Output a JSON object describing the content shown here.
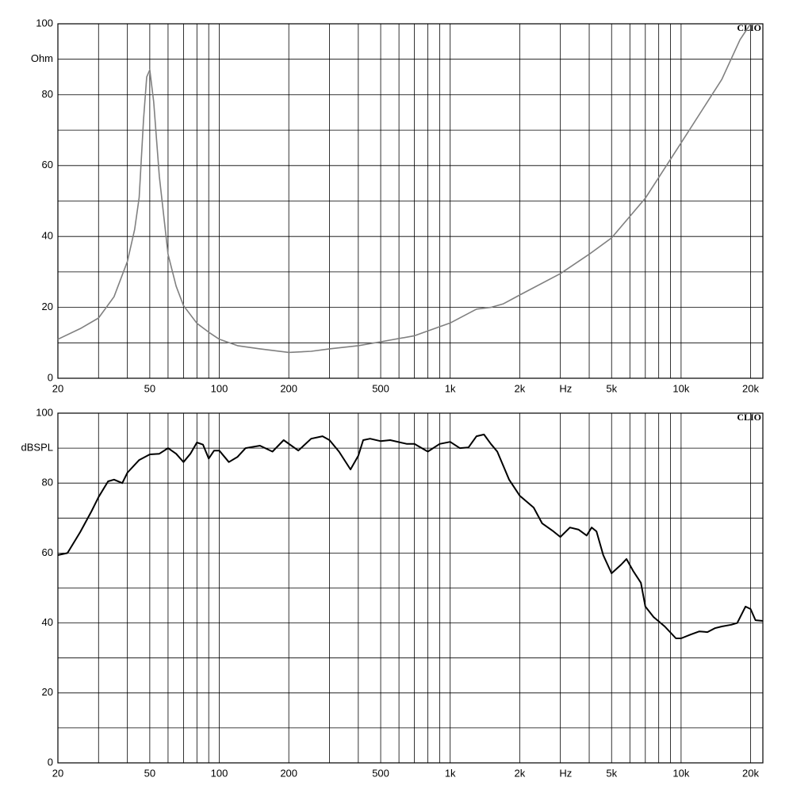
{
  "chart_data": [
    {
      "type": "line",
      "y_label": "Ohm",
      "x_label": "Hz",
      "corner_label": "CLIO",
      "color": "#808080",
      "log_x": true,
      "grid": true,
      "xlim": [
        20,
        22600
      ],
      "ylim": [
        0,
        100
      ],
      "xticks": [
        20,
        50,
        100,
        200,
        500,
        {
          "value": 1000,
          "label": "1k"
        },
        {
          "value": 2000,
          "label": "2k"
        },
        {
          "value": 5000,
          "label": "5k"
        },
        {
          "value": 10000,
          "label": "10k"
        },
        {
          "value": 20000,
          "label": "20k"
        }
      ],
      "xminor": [
        30,
        40,
        60,
        70,
        80,
        90,
        300,
        400,
        600,
        700,
        800,
        900,
        3000,
        4000,
        6000,
        7000,
        8000,
        9000
      ],
      "yticks": [
        0,
        20,
        40,
        60,
        80,
        100
      ],
      "yminor": [
        10,
        30,
        50,
        70,
        90
      ],
      "x": [
        20,
        25,
        30,
        35,
        40,
        43,
        45,
        47,
        48.5,
        50,
        52,
        55,
        60,
        65,
        70,
        80,
        90,
        100,
        120,
        150,
        200,
        250,
        300,
        400,
        500,
        700,
        1000,
        1300,
        1500,
        1700,
        2000,
        3000,
        4000,
        5000,
        7000,
        10000,
        15000,
        18000,
        20000
      ],
      "values": [
        11,
        14,
        17,
        23,
        33,
        42,
        51,
        73,
        85,
        87,
        78,
        57,
        35,
        26,
        20.5,
        15.5,
        13,
        11,
        9.2,
        8.3,
        7.3,
        7.6,
        8.3,
        9.2,
        10.3,
        12,
        15.6,
        19.5,
        20,
        21,
        23.5,
        29.5,
        35,
        39.6,
        50.8,
        66.4,
        84.3,
        95.5,
        100
      ]
    },
    {
      "type": "line",
      "y_label": "dBSPL",
      "x_label": "Hz",
      "corner_label": "CLIO",
      "color": "#000000",
      "log_x": true,
      "grid": true,
      "xlim": [
        20,
        22600
      ],
      "ylim": [
        0,
        100
      ],
      "xticks": [
        20,
        50,
        100,
        200,
        500,
        {
          "value": 1000,
          "label": "1k"
        },
        {
          "value": 2000,
          "label": "2k"
        },
        {
          "value": 5000,
          "label": "5k"
        },
        {
          "value": 10000,
          "label": "10k"
        },
        {
          "value": 20000,
          "label": "20k"
        }
      ],
      "xminor": [
        30,
        40,
        60,
        70,
        80,
        90,
        300,
        400,
        600,
        700,
        800,
        900,
        3000,
        4000,
        6000,
        7000,
        8000,
        9000
      ],
      "yticks": [
        0,
        20,
        40,
        60,
        80,
        100
      ],
      "yminor": [
        10,
        30,
        50,
        70,
        90
      ],
      "x": [
        20,
        22,
        25,
        28,
        30,
        33,
        35,
        38,
        40,
        45,
        50,
        55,
        60,
        65,
        70,
        75,
        80,
        85,
        90,
        95,
        100,
        110,
        120,
        130,
        150,
        170,
        190,
        220,
        250,
        280,
        300,
        330,
        370,
        400,
        420,
        450,
        500,
        550,
        650,
        700,
        800,
        900,
        1000,
        1100,
        1200,
        1300,
        1400,
        1500,
        1600,
        1800,
        2000,
        2300,
        2500,
        2800,
        3000,
        3300,
        3600,
        3900,
        4100,
        4300,
        4600,
        5000,
        5500,
        5800,
        6200,
        6700,
        7000,
        7600,
        8500,
        9500,
        10000,
        11000,
        12000,
        13000,
        14000,
        15000,
        16500,
        17500,
        19000,
        20000,
        21000,
        22600
      ],
      "values": [
        59.4,
        60,
        66,
        72,
        76,
        80.5,
        81,
        80,
        83,
        86.6,
        88.2,
        88.4,
        90,
        88.4,
        86,
        88.4,
        91.6,
        91,
        87,
        89.3,
        89.3,
        86,
        87.5,
        90,
        90.7,
        89,
        92.3,
        89.3,
        92.7,
        93.4,
        92.3,
        89,
        83.9,
        87.8,
        92.3,
        92.7,
        92,
        92.3,
        91.2,
        91.2,
        89,
        91.2,
        91.8,
        90,
        90.2,
        93.4,
        93.9,
        91.2,
        89,
        81,
        76.4,
        73,
        68.5,
        66.2,
        64.6,
        67.3,
        66.7,
        65,
        67.3,
        66.2,
        59.4,
        54.2,
        56.7,
        58.3,
        54.9,
        51.5,
        44.7,
        41.7,
        39,
        35.6,
        35.6,
        36.7,
        37.6,
        37.4,
        38.5,
        39,
        39.5,
        40,
        44.7,
        44,
        40.8,
        40.6
      ]
    }
  ]
}
